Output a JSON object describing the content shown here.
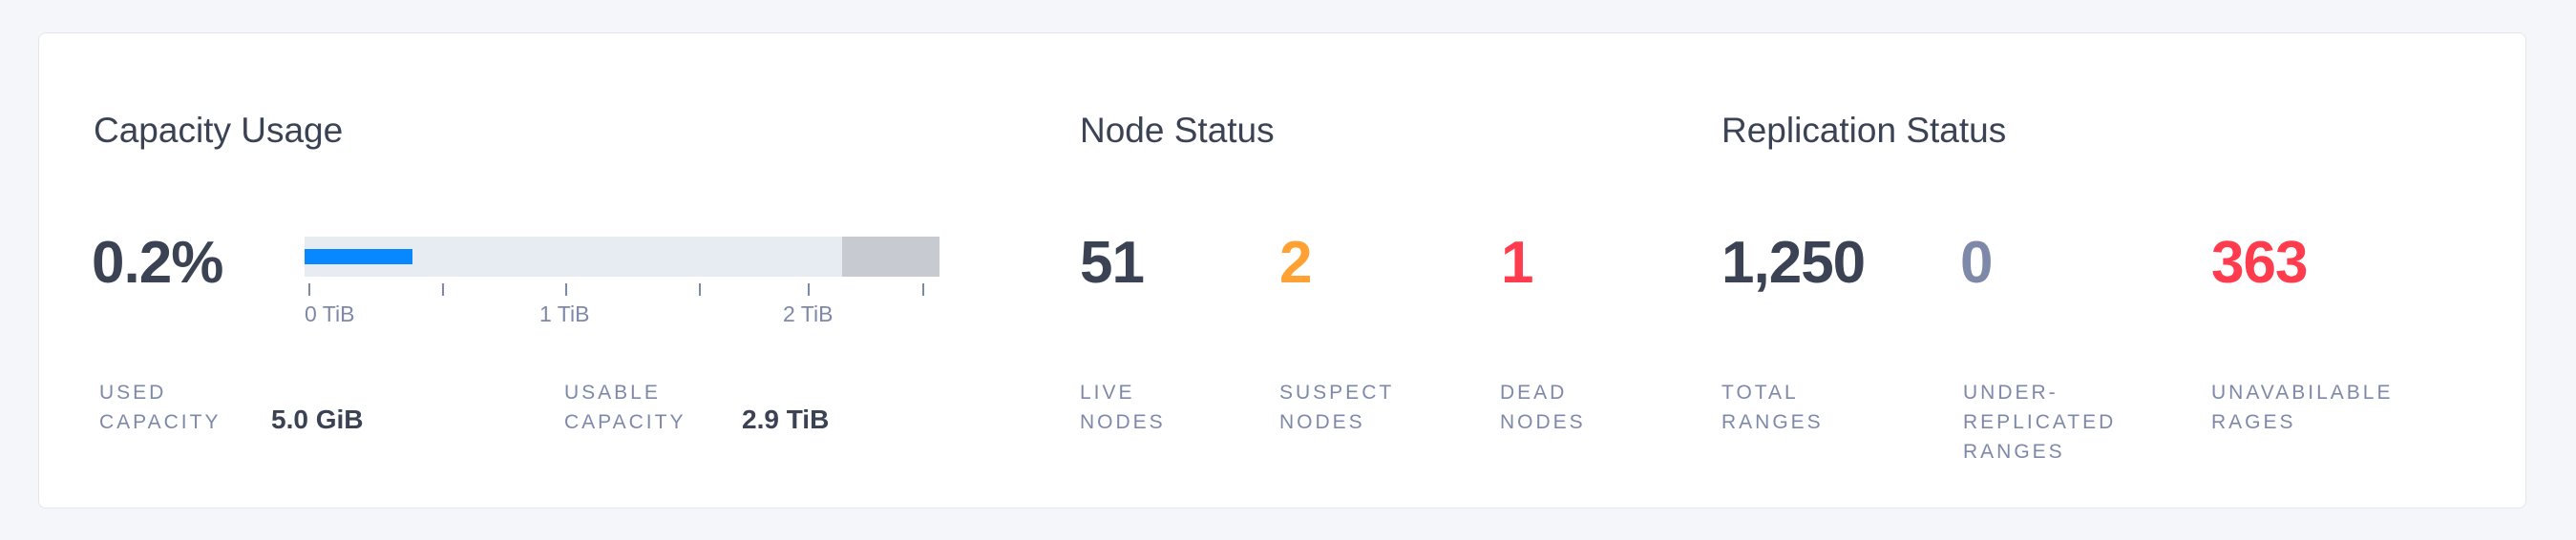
{
  "capacity": {
    "title": "Capacity Usage",
    "percent": "0.2%",
    "bar": {
      "used_fill_fraction": 0.17,
      "unusable_fraction": 0.153,
      "used_color": "#0788ff",
      "unusable_color": "#c8cad2",
      "track_color": "#e7ecf3"
    },
    "ticks": [
      "0 TiB",
      "1 TiB",
      "2 TiB"
    ],
    "used_label_1": "USED",
    "used_label_2": "CAPACITY",
    "used_value": "5.0 GiB",
    "usable_label_1": "USABLE",
    "usable_label_2": "CAPACITY",
    "usable_value": "2.9 TiB"
  },
  "node_status": {
    "title": "Node Status",
    "live": {
      "value": "51",
      "label_1": "LIVE",
      "label_2": "NODES",
      "color": "#3a4254"
    },
    "suspect": {
      "value": "2",
      "label_1": "SUSPECT",
      "label_2": "NODES",
      "color": "#ffa133"
    },
    "dead": {
      "value": "1",
      "label_1": "DEAD",
      "label_2": "NODES",
      "color": "#ff3b4e"
    }
  },
  "replication_status": {
    "title": "Replication Status",
    "total": {
      "value": "1,250",
      "label_1": "TOTAL",
      "label_2": "RANGES",
      "color": "#3a4254"
    },
    "under": {
      "value": "0",
      "label_1": "UNDER-",
      "label_2": "REPLICATED",
      "label_3": "RANGES",
      "color": "#7e89a9"
    },
    "unavailable": {
      "value": "363",
      "label_1": "UNAVABILABLE",
      "label_2": "RAGES",
      "color": "#ff3b4e"
    }
  }
}
